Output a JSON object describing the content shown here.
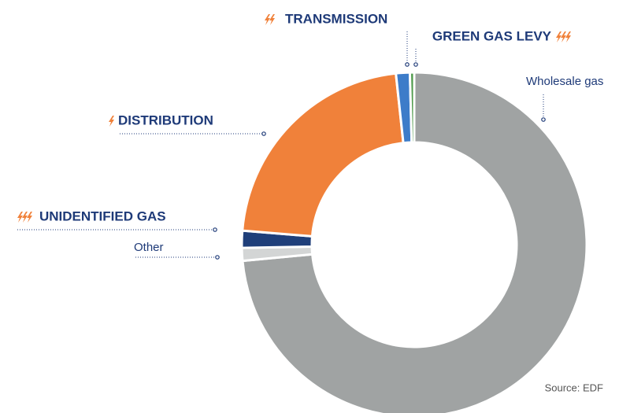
{
  "chart_data": {
    "type": "pie",
    "categories": [
      "Wholesale gas",
      "Other",
      "UNIDENTIFIED GAS",
      "DISTRIBUTION",
      "TRANSMISSION",
      "GREEN GAS LEVY"
    ],
    "values": [
      73.5,
      1.2,
      1.6,
      22,
      1.3,
      0.4
    ],
    "colors": [
      "#a0a3a3",
      "#d3d5d5",
      "#1f3f7a",
      "#f0813a",
      "#3d7cc9",
      "#4e9a4a"
    ],
    "source": "Source: EDF"
  }
}
